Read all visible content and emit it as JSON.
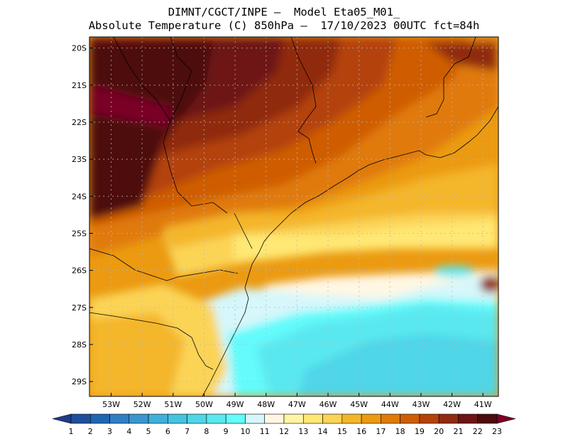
{
  "title": {
    "line1": "DIMNT/CGCT/INPE –  Model Eta05_M01_",
    "line2": "Absolute Temperature (C) 850hPa –  17/10/2023 00UTC fct=84h"
  },
  "map": {
    "lat_labels": [
      "20S",
      "21S",
      "22S",
      "23S",
      "24S",
      "25S",
      "26S",
      "27S",
      "28S",
      "29S"
    ],
    "lon_labels": [
      "53W",
      "52W",
      "51W",
      "50W",
      "49W",
      "48W",
      "47W",
      "46W",
      "45W",
      "44W",
      "43W",
      "42W",
      "41W"
    ],
    "lon_range": [
      53.7,
      40.5
    ],
    "lat_range": [
      19.7,
      29.4
    ]
  },
  "colorbar": {
    "labels": [
      "1",
      "2",
      "3",
      "4",
      "5",
      "6",
      "7",
      "8",
      "9",
      "10",
      "11",
      "12",
      "13",
      "14",
      "15",
      "16",
      "17",
      "18",
      "19",
      "20",
      "21",
      "22",
      "23"
    ],
    "colors": [
      "#213a8a",
      "#1e4f9e",
      "#1f66b2",
      "#2f7fc3",
      "#3a96cf",
      "#3fb0d8",
      "#45c3de",
      "#4fd6e8",
      "#5ae8f0",
      "#63fbfb",
      "#d6f7fb",
      "#fff7e3",
      "#fff5a5",
      "#ffe874",
      "#fbd456",
      "#f4b629",
      "#eb9a11",
      "#e07a09",
      "#cf5d05",
      "#b44208",
      "#902a10",
      "#6e1414",
      "#4e0b0e",
      "#7a0028"
    ]
  }
}
